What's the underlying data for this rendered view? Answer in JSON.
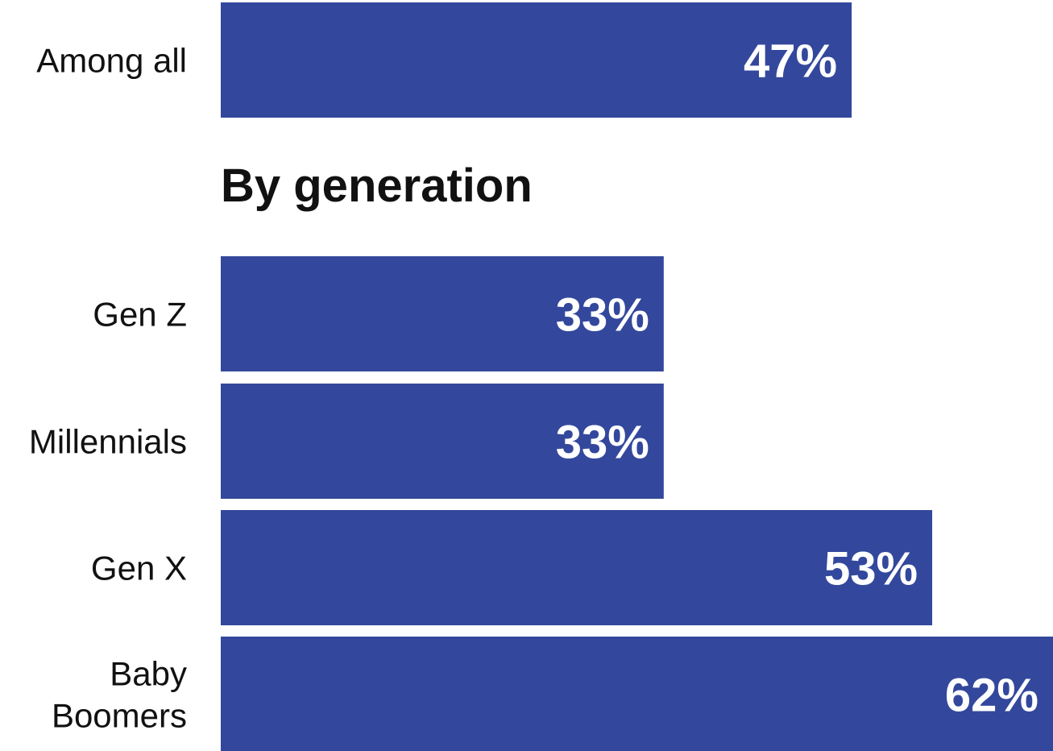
{
  "chart_data": {
    "type": "bar",
    "orientation": "horizontal",
    "bar_color": "#33489c",
    "value_label_color": "#ffffff",
    "value_suffix": "%",
    "xlim": [
      0,
      62
    ],
    "top": {
      "categories": [
        "Among all"
      ],
      "values": [
        47
      ]
    },
    "section_heading": "By generation",
    "groups": {
      "categories": [
        [
          "Gen Z"
        ],
        [
          "Millennials"
        ],
        [
          "Gen X"
        ],
        [
          "Baby",
          "Boomers"
        ]
      ],
      "values": [
        33,
        33,
        53,
        62
      ]
    },
    "grid": false,
    "legend": "none"
  }
}
